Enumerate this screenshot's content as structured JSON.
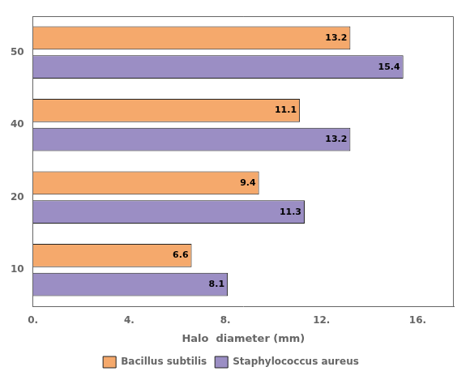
{
  "chart_data": {
    "type": "bar",
    "orientation": "horizontal",
    "categories": [
      "10",
      "20",
      "40",
      "50"
    ],
    "series": [
      {
        "name": "Bacillus subtilis",
        "color": "#F5A96C",
        "values": [
          6.6,
          9.4,
          11.1,
          13.2
        ]
      },
      {
        "name": "Staphylococcus aureus",
        "color": "#9B8EC4",
        "values": [
          8.1,
          11.3,
          13.2,
          15.4
        ]
      }
    ],
    "xlabel": "Halo  diameter (mm)",
    "xlim": [
      0,
      17.5
    ],
    "xticks": [
      {
        "value": 0,
        "label": "0."
      },
      {
        "value": 4,
        "label": "4."
      },
      {
        "value": 8,
        "label": "8."
      },
      {
        "value": 12,
        "label": "12."
      },
      {
        "value": 16,
        "label": "16."
      }
    ],
    "grid": false,
    "legend": "bottom",
    "data_labels": true
  }
}
